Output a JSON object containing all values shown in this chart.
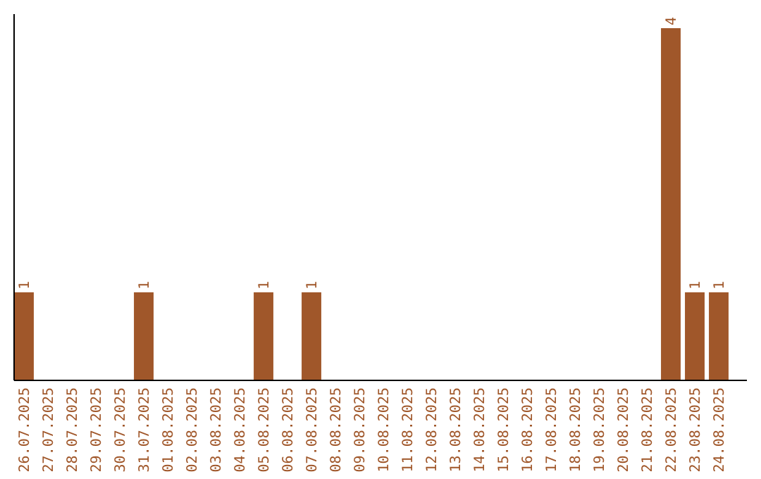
{
  "chart_data": {
    "type": "bar",
    "categories": [
      "26.07.2025",
      "27.07.2025",
      "28.07.2025",
      "29.07.2025",
      "30.07.2025",
      "31.07.2025",
      "01.08.2025",
      "02.08.2025",
      "03.08.2025",
      "04.08.2025",
      "05.08.2025",
      "06.08.2025",
      "07.08.2025",
      "08.08.2025",
      "09.08.2025",
      "10.08.2025",
      "11.08.2025",
      "12.08.2025",
      "13.08.2025",
      "14.08.2025",
      "15.08.2025",
      "16.08.2025",
      "17.08.2025",
      "18.08.2025",
      "19.08.2025",
      "20.08.2025",
      "21.08.2025",
      "22.08.2025",
      "23.08.2025",
      "24.08.2025"
    ],
    "values": [
      1,
      0,
      0,
      0,
      0,
      1,
      0,
      0,
      0,
      0,
      1,
      0,
      1,
      0,
      0,
      0,
      0,
      0,
      0,
      0,
      0,
      0,
      0,
      0,
      0,
      0,
      0,
      4,
      1,
      1
    ],
    "value_labels": [
      "1",
      null,
      null,
      null,
      null,
      "1",
      null,
      null,
      null,
      null,
      "1",
      null,
      "1",
      null,
      null,
      null,
      null,
      null,
      null,
      null,
      null,
      null,
      null,
      null,
      null,
      null,
      null,
      "4",
      "1",
      "1"
    ],
    "color": "#a0572a"
  }
}
